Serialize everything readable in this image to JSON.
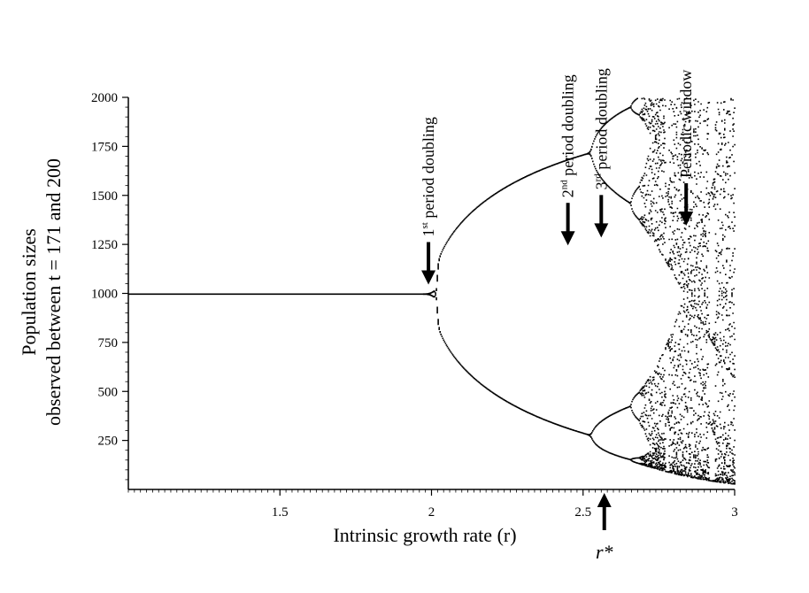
{
  "chart_data": {
    "type": "scatter",
    "title": "",
    "xlabel": "Intrinsic growth rate (r)",
    "ylabel_line1": "Population sizes",
    "ylabel_line2": "observed between t = 171 and 200",
    "xlim": [
      1,
      3
    ],
    "ylim": [
      0,
      2000
    ],
    "x_ticks": [
      1.5,
      2,
      2.5,
      3
    ],
    "x_tick_labels": [
      "1.5",
      "2",
      "2.5",
      "3"
    ],
    "y_ticks": [
      250,
      500,
      750,
      1000,
      1250,
      1500,
      1750,
      2000
    ],
    "y_tick_labels": [
      "250",
      "500",
      "750",
      "1000",
      "1250",
      "1500",
      "1750",
      "2000"
    ],
    "grid": false,
    "model": {
      "equilibrium": 1000,
      "r_min": 1,
      "r_max": 3,
      "r_step": 0.003,
      "t_observed_start": 171,
      "t_observed_end": 200
    },
    "annotations": [
      {
        "label": "1st period doubling",
        "base": "1",
        "sup": "st",
        "rest": " period doubling",
        "r": 1.99,
        "y": 1000,
        "direction": "down"
      },
      {
        "label": "2nd period doubling",
        "base": "2",
        "sup": "nd",
        "rest": " period doubling",
        "r": 2.45,
        "y": 1200,
        "direction": "down"
      },
      {
        "label": "3rd period doubling",
        "base": "3",
        "sup": "rd",
        "rest": " period doubling",
        "r": 2.56,
        "y": 1240,
        "direction": "down"
      },
      {
        "label": "Periodic window",
        "base": "Periodic window",
        "sup": "",
        "rest": "",
        "r": 2.84,
        "y": 1300,
        "direction": "down"
      }
    ],
    "r_star": {
      "label": "r*",
      "r": 2.57,
      "direction": "up"
    }
  }
}
